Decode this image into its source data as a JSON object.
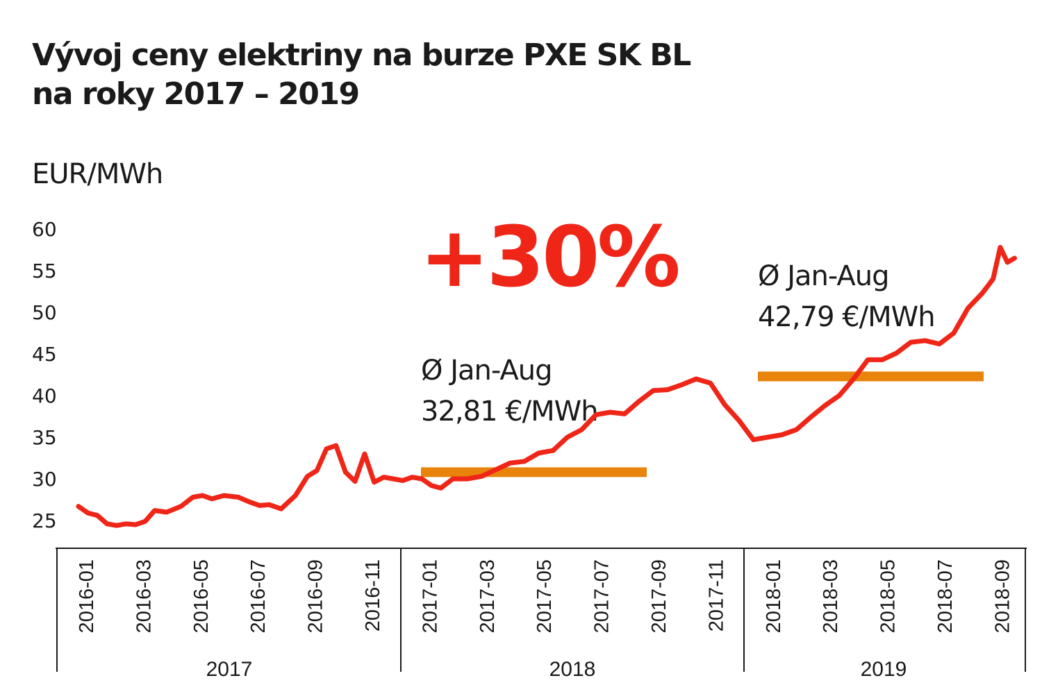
{
  "chart_data": {
    "type": "line",
    "title": [
      "Vývoj ceny elektriny na burze PXE SK BL",
      "na roky 2017 – 2019"
    ],
    "ylabel": "EUR/MWh",
    "xlabel": "",
    "ylim": [
      24,
      60
    ],
    "yticks": [
      25,
      30,
      35,
      40,
      45,
      50,
      55,
      60
    ],
    "x_tick_labels": [
      "2016-01",
      "2016-03",
      "2016-05",
      "2016-07",
      "2016-09",
      "2016-11",
      "2017-01",
      "2017-03",
      "2017-05",
      "2017-07",
      "2017-09",
      "2017-11",
      "2018-01",
      "2018-03",
      "2018-05",
      "2018-07",
      "2018-09"
    ],
    "year_groups": [
      "2017",
      "2018",
      "2019"
    ],
    "grid": false,
    "colors": {
      "line": "#ef2617",
      "average": "#e8830c",
      "emphasis": "#ef2617"
    },
    "series": [
      {
        "x": [
          "2016-01",
          "2016-01",
          "2016-01",
          "2016-02",
          "2016-02",
          "2016-02",
          "2016-03",
          "2016-03",
          "2016-03",
          "2016-04",
          "2016-04",
          "2016-05",
          "2016-05",
          "2016-05",
          "2016-06",
          "2016-06",
          "2016-07",
          "2016-07",
          "2016-07",
          "2016-08",
          "2016-08",
          "2016-09",
          "2016-09",
          "2016-09",
          "2016-10",
          "2016-10",
          "2016-10",
          "2016-11",
          "2016-11",
          "2016-11",
          "2016-12",
          "2016-12",
          "2016-12",
          "2017-01",
          "2017-01",
          "2017-01",
          "2017-02",
          "2017-02",
          "2017-03",
          "2017-03",
          "2017-04",
          "2017-04",
          "2017-05",
          "2017-05",
          "2017-06",
          "2017-06",
          "2017-07",
          "2017-07",
          "2017-08",
          "2017-08",
          "2017-09",
          "2017-09",
          "2017-10",
          "2017-10",
          "2017-11",
          "2017-11",
          "2017-12",
          "2017-12",
          "2018-01",
          "2018-01",
          "2018-02",
          "2018-02",
          "2018-03",
          "2018-03",
          "2018-04",
          "2018-04",
          "2018-05",
          "2018-05",
          "2018-06",
          "2018-06",
          "2018-07",
          "2018-07",
          "2018-08",
          "2018-08",
          "2018-09",
          "2018-09",
          "2018-09",
          "2018-09"
        ],
        "values": [
          26.7,
          25.9,
          25.6,
          24.6,
          24.4,
          24.6,
          24.5,
          24.9,
          26.2,
          26.0,
          26.7,
          27.8,
          28.0,
          27.6,
          28.0,
          27.8,
          27.2,
          26.8,
          26.9,
          26.4,
          28.0,
          30.3,
          31.0,
          33.6,
          34.0,
          30.8,
          29.7,
          33.0,
          29.6,
          30.2,
          30.0,
          29.8,
          30.2,
          30.0,
          29.2,
          28.9,
          30.0,
          30.0,
          30.3,
          31.1,
          31.9,
          32.1,
          33.1,
          33.4,
          35.0,
          35.9,
          37.7,
          38.0,
          37.8,
          39.3,
          40.6,
          40.7,
          41.3,
          42.0,
          41.5,
          38.9,
          37.0,
          34.7,
          35.0,
          35.3,
          35.9,
          37.4,
          38.8,
          40.0,
          42.0,
          44.3,
          44.3,
          45.1,
          46.4,
          46.6,
          46.2,
          47.5,
          50.5,
          52.3,
          54.0,
          57.8,
          56.0,
          56.5
        ]
      }
    ],
    "averages": [
      {
        "label": "Ø Jan-Aug",
        "value_label": "32,81 €/MWh",
        "x_range": [
          "2017-01",
          "2017-09"
        ]
      },
      {
        "label": "Ø Jan-Aug",
        "value_label": "42,79 €/MWh",
        "x_range": [
          "2018-01",
          "2018-09"
        ]
      }
    ],
    "highlight": "+30%"
  }
}
